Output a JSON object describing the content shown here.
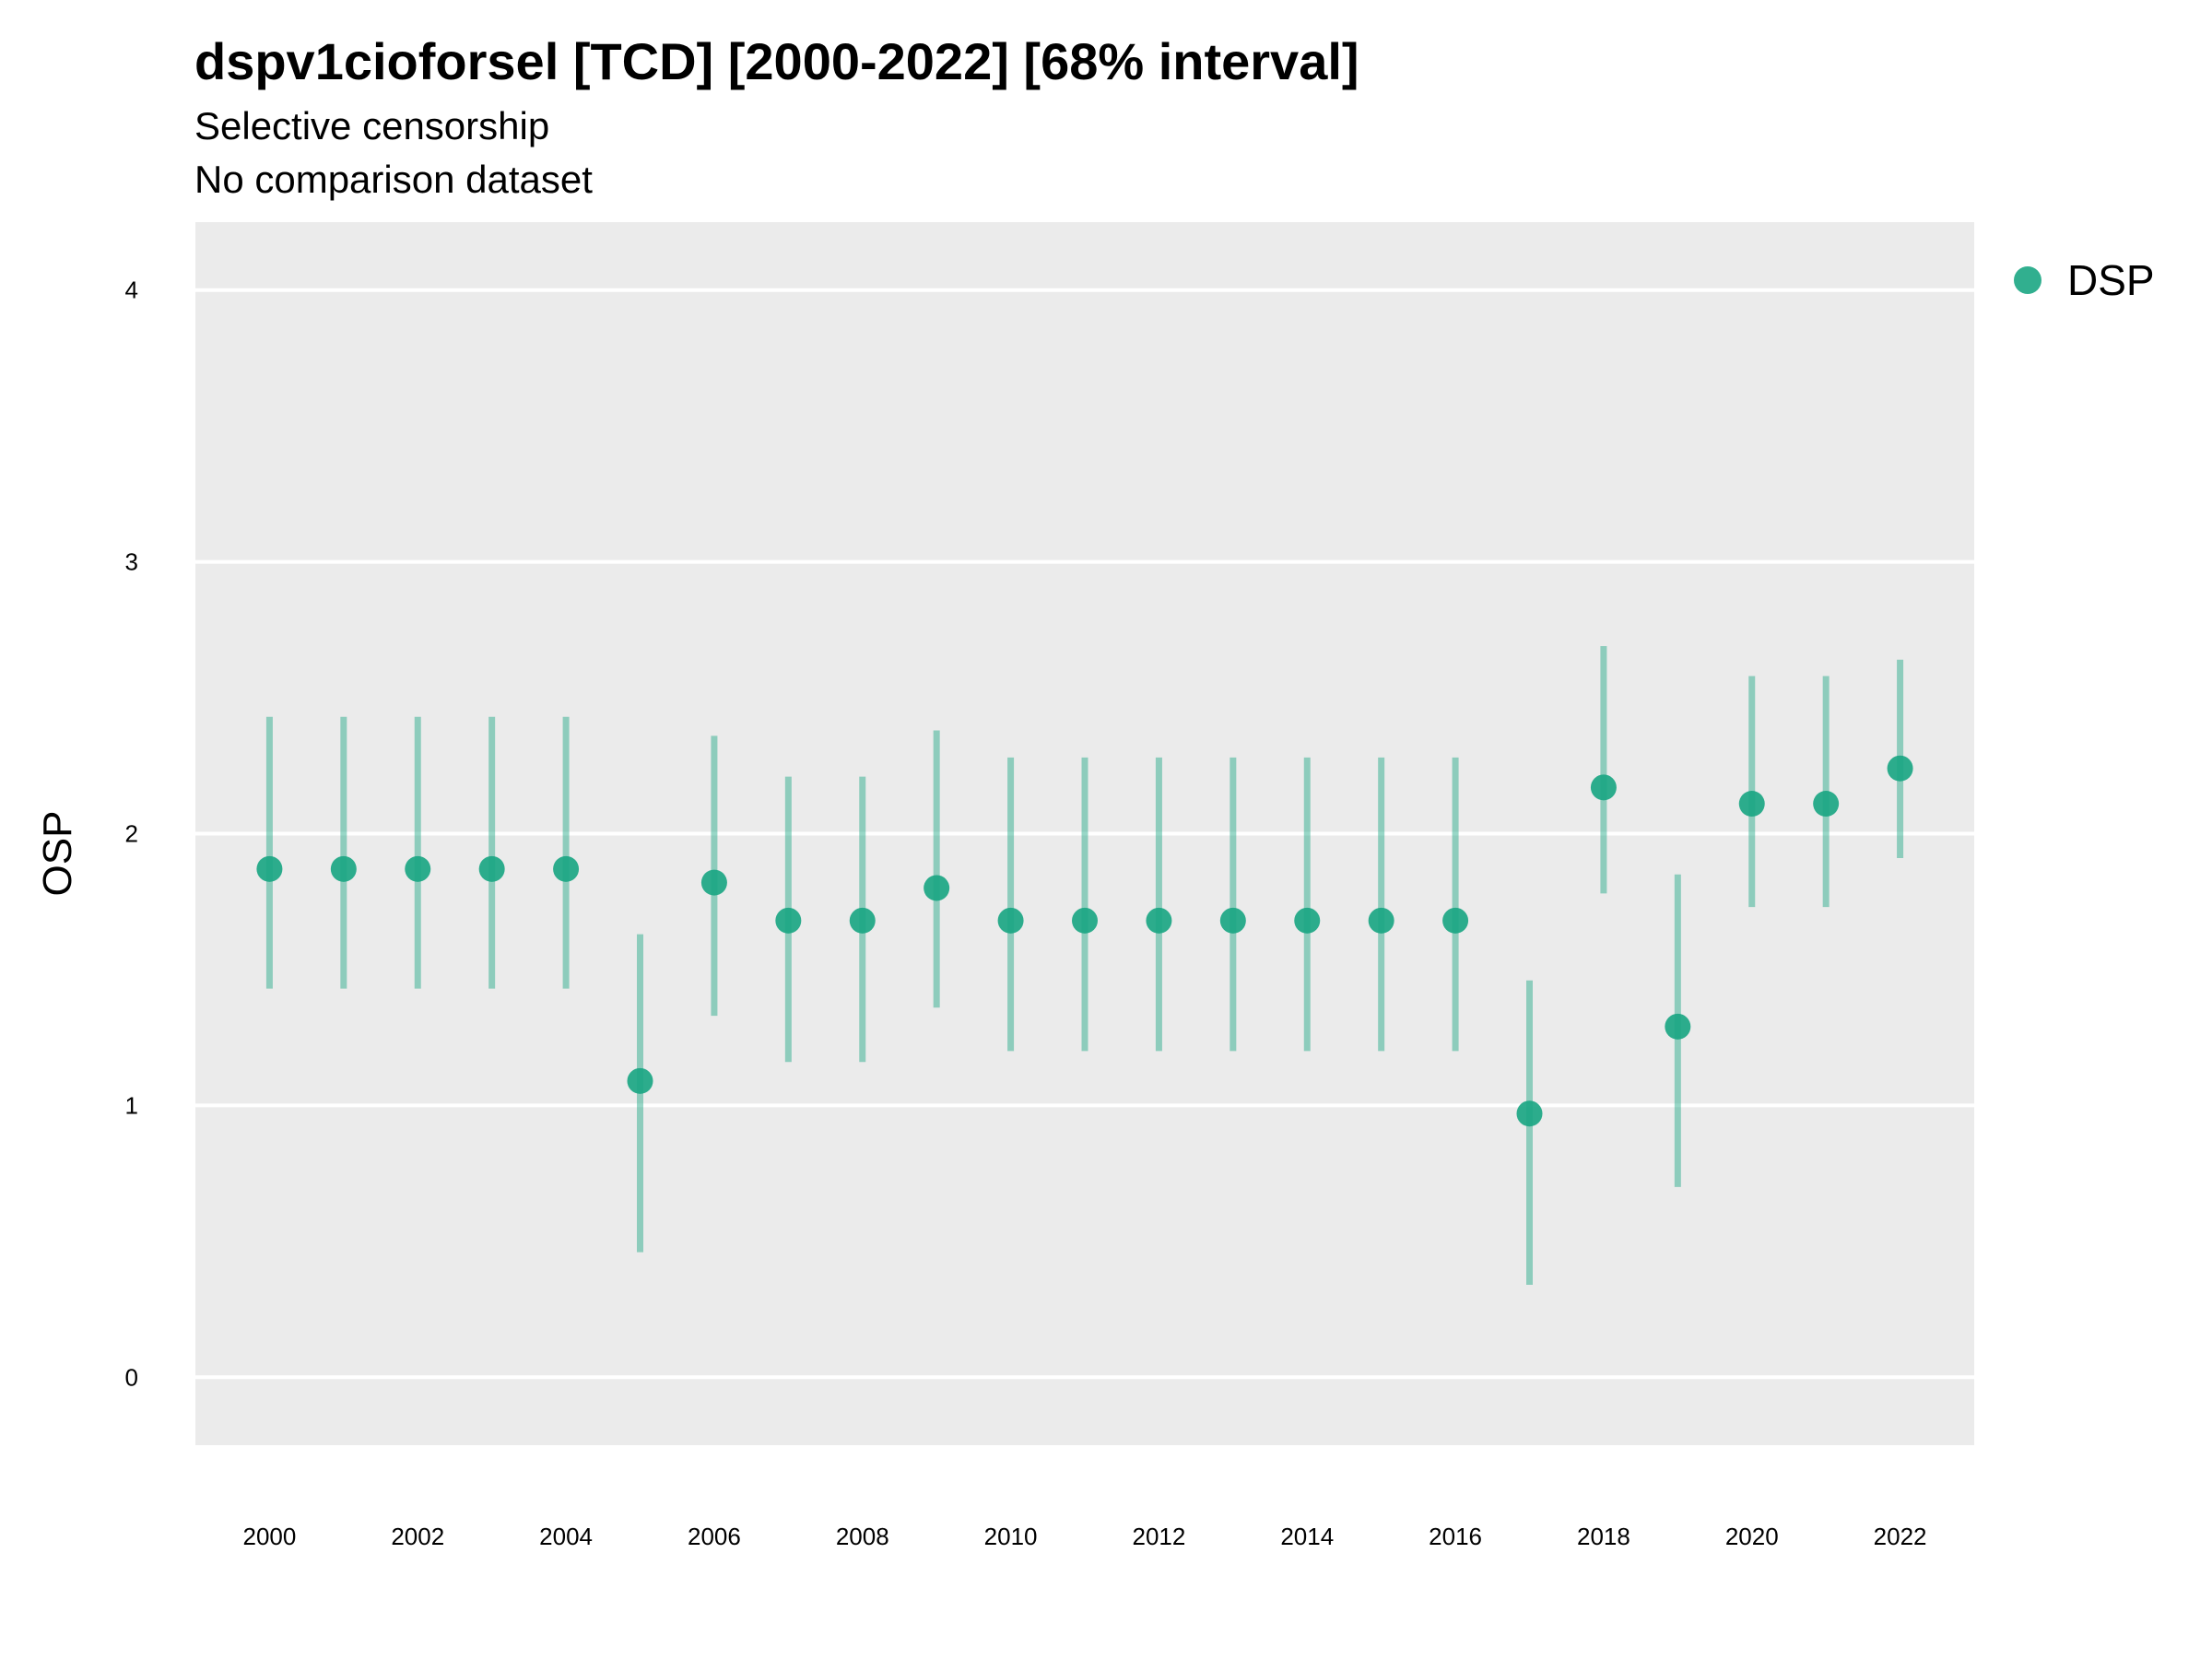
{
  "chart_data": {
    "type": "scatter",
    "title": "dspv1cioforsel [TCD] [2000-2022] [68% interval]",
    "subtitle": "Selective censorship",
    "subtitle2": "No comparison dataset",
    "xlabel": "",
    "ylabel": "OSP",
    "xlim": [
      1999,
      2023
    ],
    "ylim": [
      -0.25,
      4.25
    ],
    "x_ticks": [
      2000,
      2002,
      2004,
      2006,
      2008,
      2010,
      2012,
      2014,
      2016,
      2018,
      2020,
      2022
    ],
    "y_ticks": [
      0,
      1,
      2,
      3,
      4
    ],
    "grid": true,
    "legend_position": "right",
    "colors": {
      "series": "#1ba683",
      "panel": "#ebebeb",
      "grid": "#ffffff"
    },
    "series": [
      {
        "name": "DSP",
        "points": [
          {
            "x": 2000,
            "y": 1.87,
            "low": 1.43,
            "high": 2.43
          },
          {
            "x": 2001,
            "y": 1.87,
            "low": 1.43,
            "high": 2.43
          },
          {
            "x": 2002,
            "y": 1.87,
            "low": 1.43,
            "high": 2.43
          },
          {
            "x": 2003,
            "y": 1.87,
            "low": 1.43,
            "high": 2.43
          },
          {
            "x": 2004,
            "y": 1.87,
            "low": 1.43,
            "high": 2.43
          },
          {
            "x": 2005,
            "y": 1.09,
            "low": 0.46,
            "high": 1.63
          },
          {
            "x": 2006,
            "y": 1.82,
            "low": 1.33,
            "high": 2.36
          },
          {
            "x": 2007,
            "y": 1.68,
            "low": 1.16,
            "high": 2.21
          },
          {
            "x": 2008,
            "y": 1.68,
            "low": 1.16,
            "high": 2.21
          },
          {
            "x": 2009,
            "y": 1.8,
            "low": 1.36,
            "high": 2.38
          },
          {
            "x": 2010,
            "y": 1.68,
            "low": 1.2,
            "high": 2.28
          },
          {
            "x": 2011,
            "y": 1.68,
            "low": 1.2,
            "high": 2.28
          },
          {
            "x": 2012,
            "y": 1.68,
            "low": 1.2,
            "high": 2.28
          },
          {
            "x": 2013,
            "y": 1.68,
            "low": 1.2,
            "high": 2.28
          },
          {
            "x": 2014,
            "y": 1.68,
            "low": 1.2,
            "high": 2.28
          },
          {
            "x": 2015,
            "y": 1.68,
            "low": 1.2,
            "high": 2.28
          },
          {
            "x": 2016,
            "y": 1.68,
            "low": 1.2,
            "high": 2.28
          },
          {
            "x": 2017,
            "y": 0.97,
            "low": 0.34,
            "high": 1.46
          },
          {
            "x": 2018,
            "y": 2.17,
            "low": 1.78,
            "high": 2.69
          },
          {
            "x": 2019,
            "y": 1.29,
            "low": 0.7,
            "high": 1.85
          },
          {
            "x": 2020,
            "y": 2.11,
            "low": 1.73,
            "high": 2.58
          },
          {
            "x": 2021,
            "y": 2.11,
            "low": 1.73,
            "high": 2.58
          },
          {
            "x": 2022,
            "y": 2.24,
            "low": 1.91,
            "high": 2.64
          }
        ]
      }
    ]
  }
}
